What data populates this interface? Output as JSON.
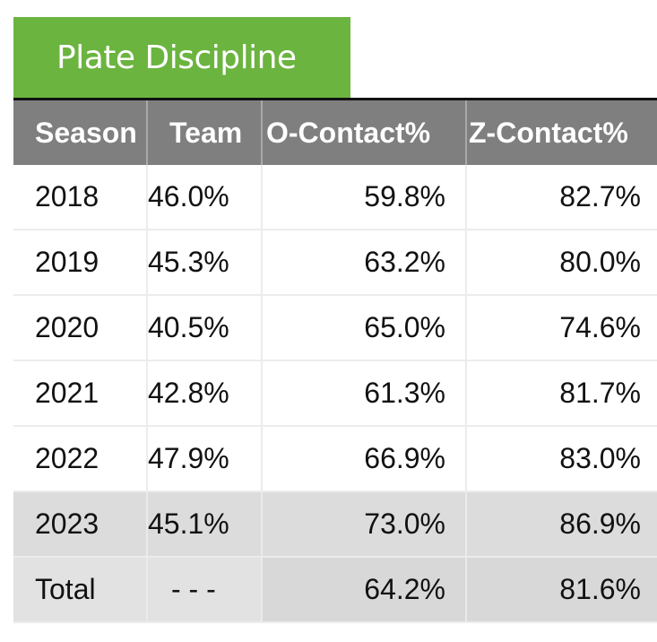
{
  "section": {
    "title": "Plate Discipline",
    "accent_color": "#6bb43f",
    "header_color": "#7f7f7f"
  },
  "table": {
    "columns": [
      "Season",
      "Team",
      "O-Contact%",
      "Z-Contact%"
    ],
    "rows": [
      {
        "season": "2018",
        "team": "46.0%",
        "o_contact": "59.8%",
        "z_contact": "82.7%"
      },
      {
        "season": "2019",
        "team": "45.3%",
        "o_contact": "63.2%",
        "z_contact": "80.0%"
      },
      {
        "season": "2020",
        "team": "40.5%",
        "o_contact": "65.0%",
        "z_contact": "74.6%"
      },
      {
        "season": "2021",
        "team": "42.8%",
        "o_contact": "61.3%",
        "z_contact": "81.7%"
      },
      {
        "season": "2022",
        "team": "47.9%",
        "o_contact": "66.9%",
        "z_contact": "83.0%"
      },
      {
        "season": "2023",
        "team": "45.1%",
        "o_contact": "73.0%",
        "z_contact": "86.9%"
      }
    ],
    "total": {
      "season": "Total",
      "team": "- - -",
      "o_contact": "64.2%",
      "z_contact": "81.6%"
    }
  }
}
